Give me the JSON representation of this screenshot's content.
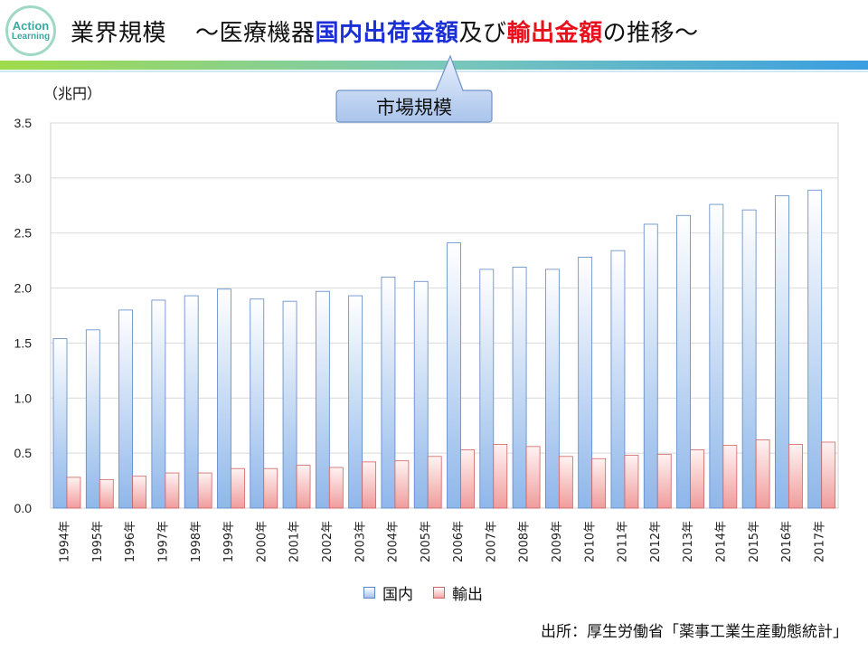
{
  "logo": {
    "line1": "Action",
    "line2": "Learning"
  },
  "title": {
    "part1": "業界規模",
    "part2": "～医療機器",
    "part3_blue": "国内出荷金額",
    "part4": "及び",
    "part5_red": "輸出金額",
    "part6": "の推移～"
  },
  "callout": {
    "label": "市場規模"
  },
  "source": "出所：厚生労働省「薬事工業生産動態統計」",
  "colors": {
    "domestic": "#a9c8ef",
    "export": "#f5b0b0",
    "title_blue": "#1a2fd6",
    "title_red": "#e8101a"
  },
  "chart_data": {
    "type": "bar",
    "title": "",
    "ylabel": "（兆円）",
    "xlabel": "",
    "ylim": [
      0,
      3.5
    ],
    "yticks": [
      "0.0",
      "0.5",
      "1.0",
      "1.5",
      "2.0",
      "2.5",
      "3.0",
      "3.5"
    ],
    "categories": [
      "1994年",
      "1995年",
      "1996年",
      "1997年",
      "1998年",
      "1999年",
      "2000年",
      "2001年",
      "2002年",
      "2003年",
      "2004年",
      "2005年",
      "2006年",
      "2007年",
      "2008年",
      "2009年",
      "2010年",
      "2011年",
      "2012年",
      "2013年",
      "2014年",
      "2015年",
      "2016年",
      "2017年"
    ],
    "series": [
      {
        "name": "国内",
        "values": [
          1.54,
          1.62,
          1.8,
          1.89,
          1.93,
          1.99,
          1.9,
          1.88,
          1.97,
          1.93,
          2.1,
          2.06,
          2.41,
          2.17,
          2.19,
          2.17,
          2.28,
          2.34,
          2.58,
          2.66,
          2.76,
          2.71,
          2.84,
          2.89
        ]
      },
      {
        "name": "輸出",
        "values": [
          0.28,
          0.26,
          0.29,
          0.32,
          0.32,
          0.36,
          0.36,
          0.39,
          0.37,
          0.42,
          0.43,
          0.47,
          0.53,
          0.58,
          0.56,
          0.47,
          0.45,
          0.48,
          0.49,
          0.53,
          0.57,
          0.62,
          0.58,
          0.6
        ]
      }
    ],
    "legend": "bottom",
    "grid": true
  }
}
